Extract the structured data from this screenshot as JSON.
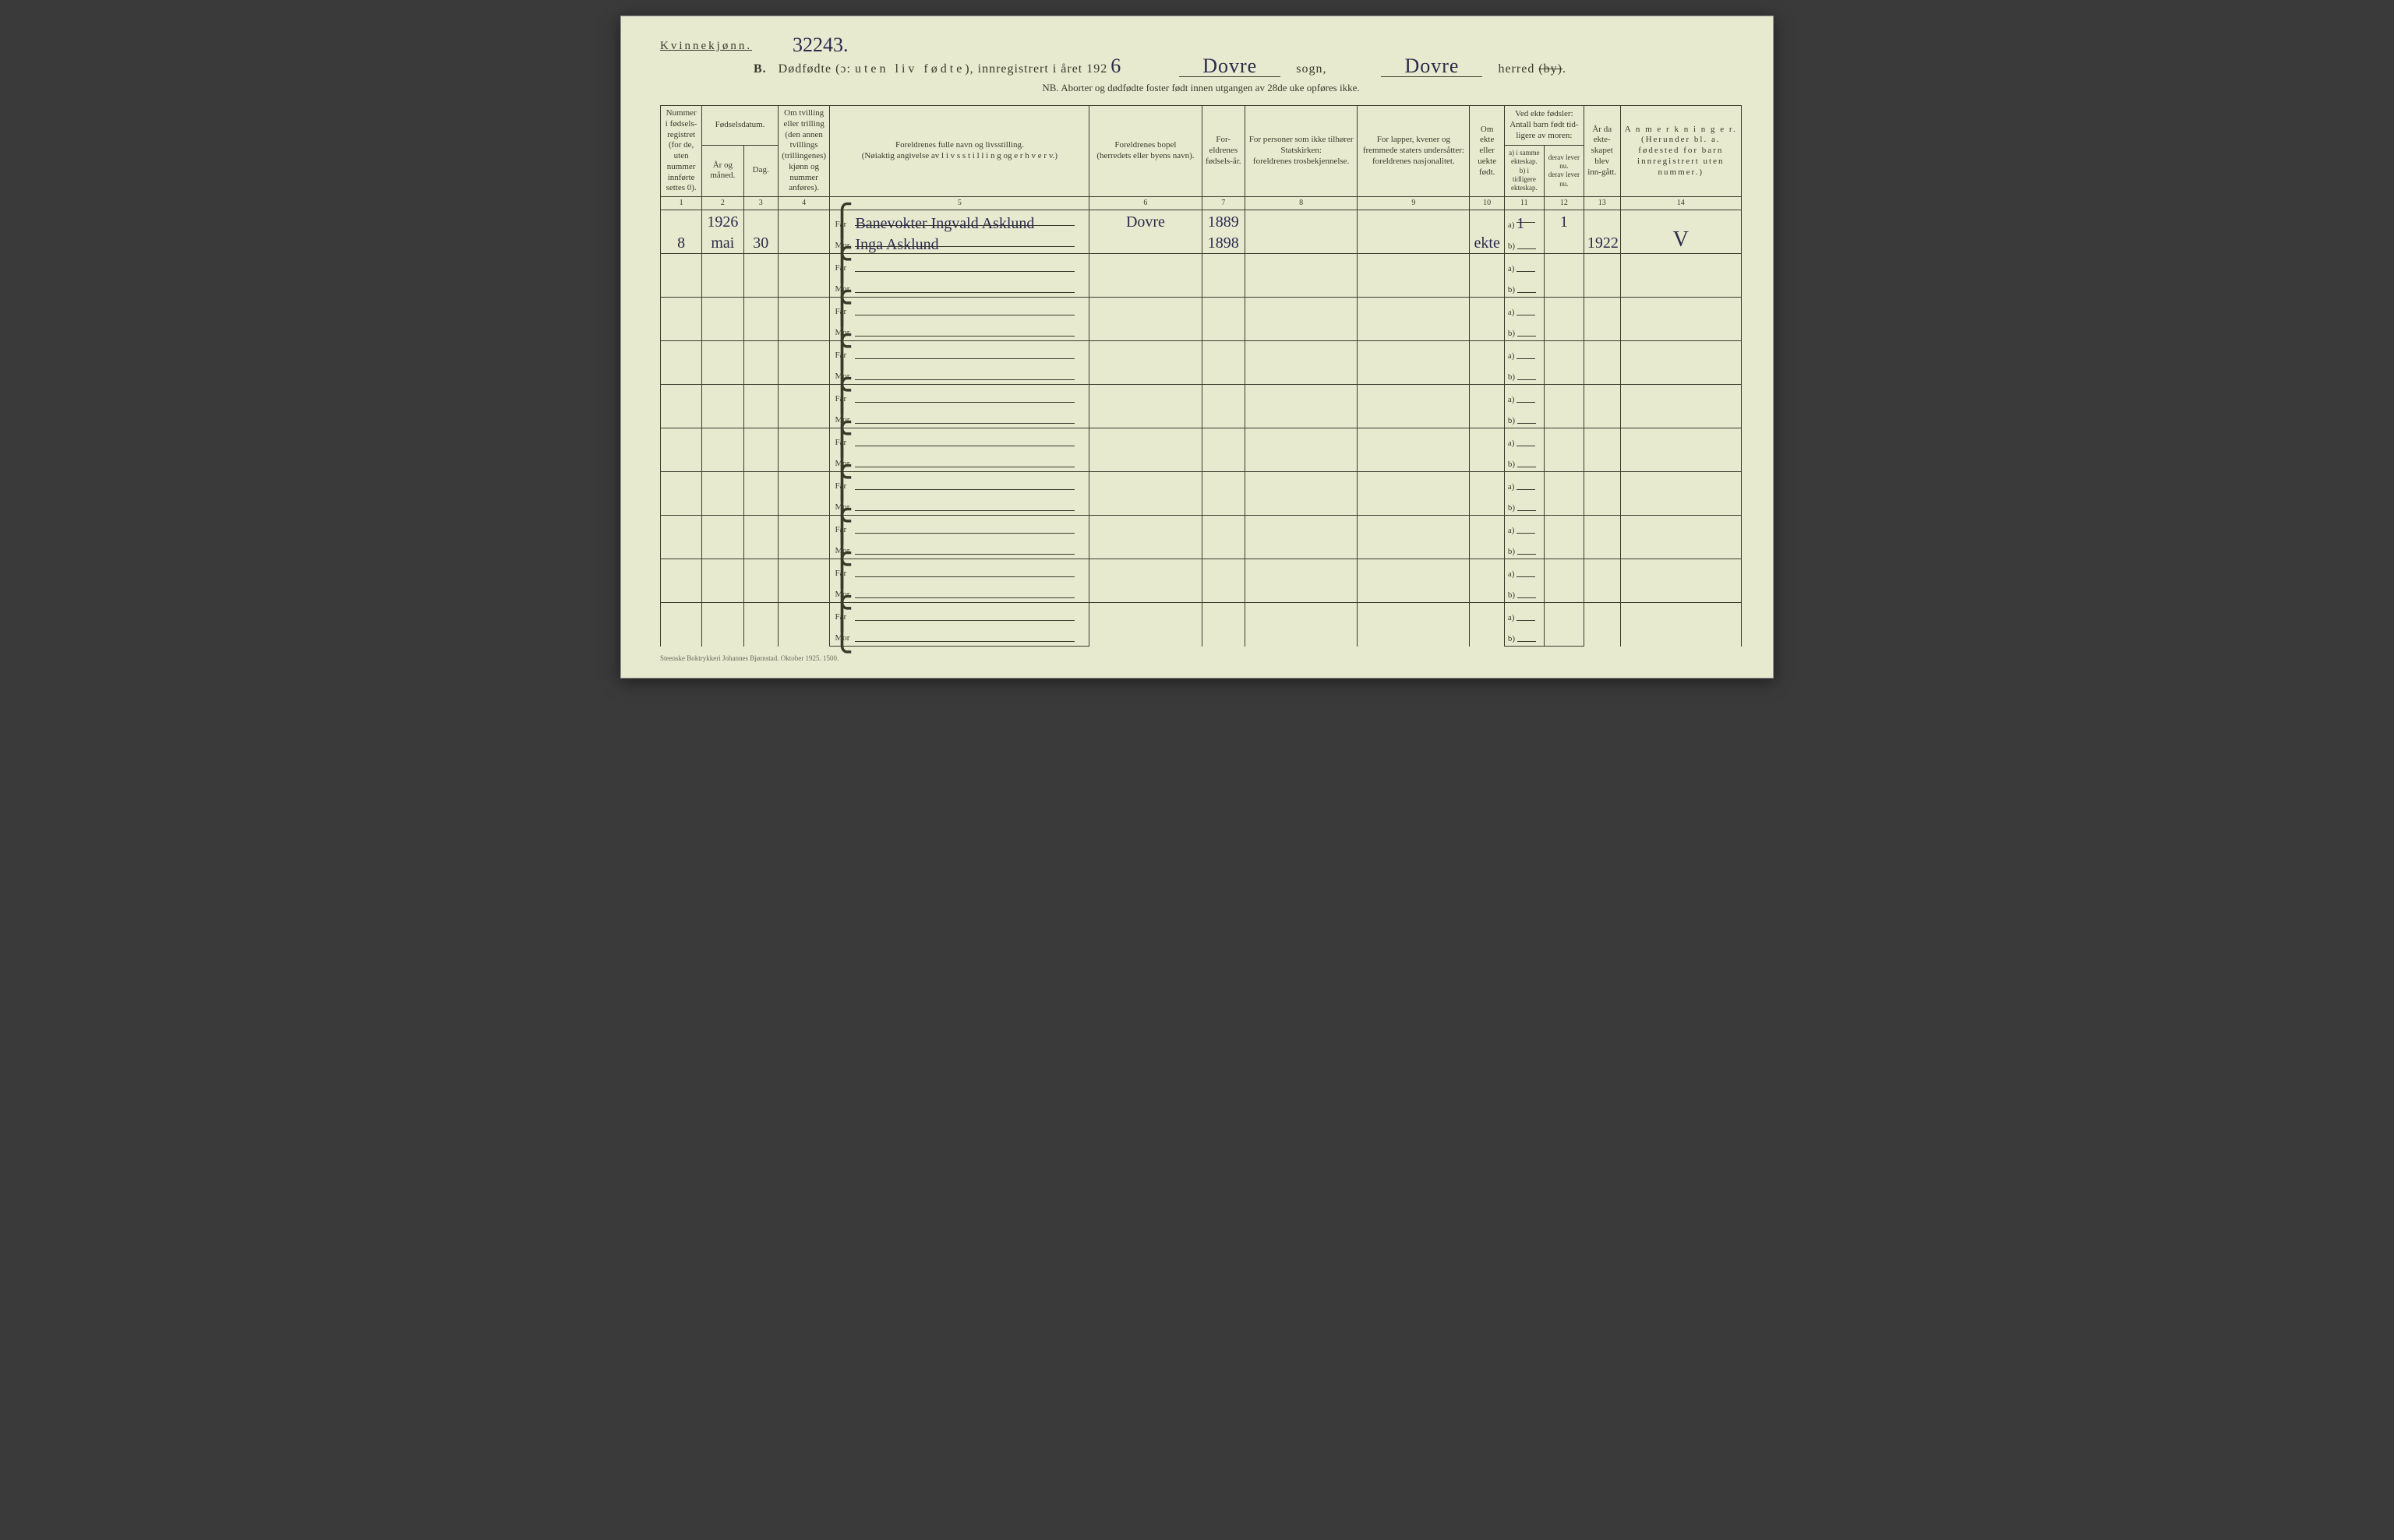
{
  "header": {
    "gender": "Kvinnekjønn.",
    "hand_top_number": "32243.",
    "section_letter": "B.",
    "title_prefix": "Dødfødte (ɔ:",
    "title_spaced": "uten liv fødte",
    "title_suffix": "), innregistrert i året 192",
    "year_digit": "6",
    "sogn_label": "sogn,",
    "sogn_value": "Dovre",
    "herred_label": "herred",
    "herred_value": "Dovre",
    "by_strike": "(by)",
    "nb_line": "NB.  Aborter og dødfødte foster født innen utgangen av 28de uke opføres ikke."
  },
  "columns": {
    "c1": "Nummer i fødsels-registret (for de, uten nummer innførte settes 0).",
    "c2_group": "Fødselsdatum.",
    "c2": "År og måned.",
    "c3": "Dag.",
    "c4": "Om tvilling eller trilling (den annen tvillings (trillingenes) kjønn og nummer anføres).",
    "c5": "Foreldrenes fulle navn og livsstilling.\n(Nøiaktig angivelse av l i v s s t i l l i n g og e r h v e r v.)",
    "c6": "Foreldrenes bopel\n(herredets eller byens navn).",
    "c7": "For-eldrenes fødsels-år.",
    "c8": "For personer som ikke tilhører Statskirken:\nforeldrenes trosbekjennelse.",
    "c9": "For lapper, kvener og fremmede staters undersåtter:\nforeldrenes nasjonalitet.",
    "c10": "Om ekte eller uekte født.",
    "c11_12_top": "Ved ekte fødsler:\nAntall barn født tid-ligere av moren:",
    "c11": "a) i samme ekteskap.\nb) i tidligere ekteskap.",
    "c12": "derav lever nu.\nderav lever nu.",
    "c13": "År da ekte-skapet blev inn-gått.",
    "c14": "A n m e r k n i n g e r.\n(Herunder bl. a. fødested for barn innregistrert uten nummer.)",
    "nums": [
      "1",
      "2",
      "3",
      "4",
      "5",
      "6",
      "7",
      "8",
      "9",
      "10",
      "11",
      "12",
      "13",
      "14"
    ]
  },
  "prelabels": {
    "far": "Far",
    "mor": "Mor",
    "a": "a)",
    "b": "b)"
  },
  "row1": {
    "num": "8",
    "year_above": "1926",
    "month": "mai",
    "day": "30",
    "far_name": "Banevokter Ingvald Asklund",
    "mor_name": "Inga Asklund",
    "bopel": "Dovre",
    "far_year": "1889",
    "mor_year": "1898",
    "ekte": "ekte",
    "a_same": "1",
    "a_lever": "1",
    "year_marr": "1922",
    "remark": "V"
  },
  "empty_rows": 9,
  "footer": "Steenske Boktrykkeri Johannes Bjørnstad.  Oktober 1925.   1500."
}
